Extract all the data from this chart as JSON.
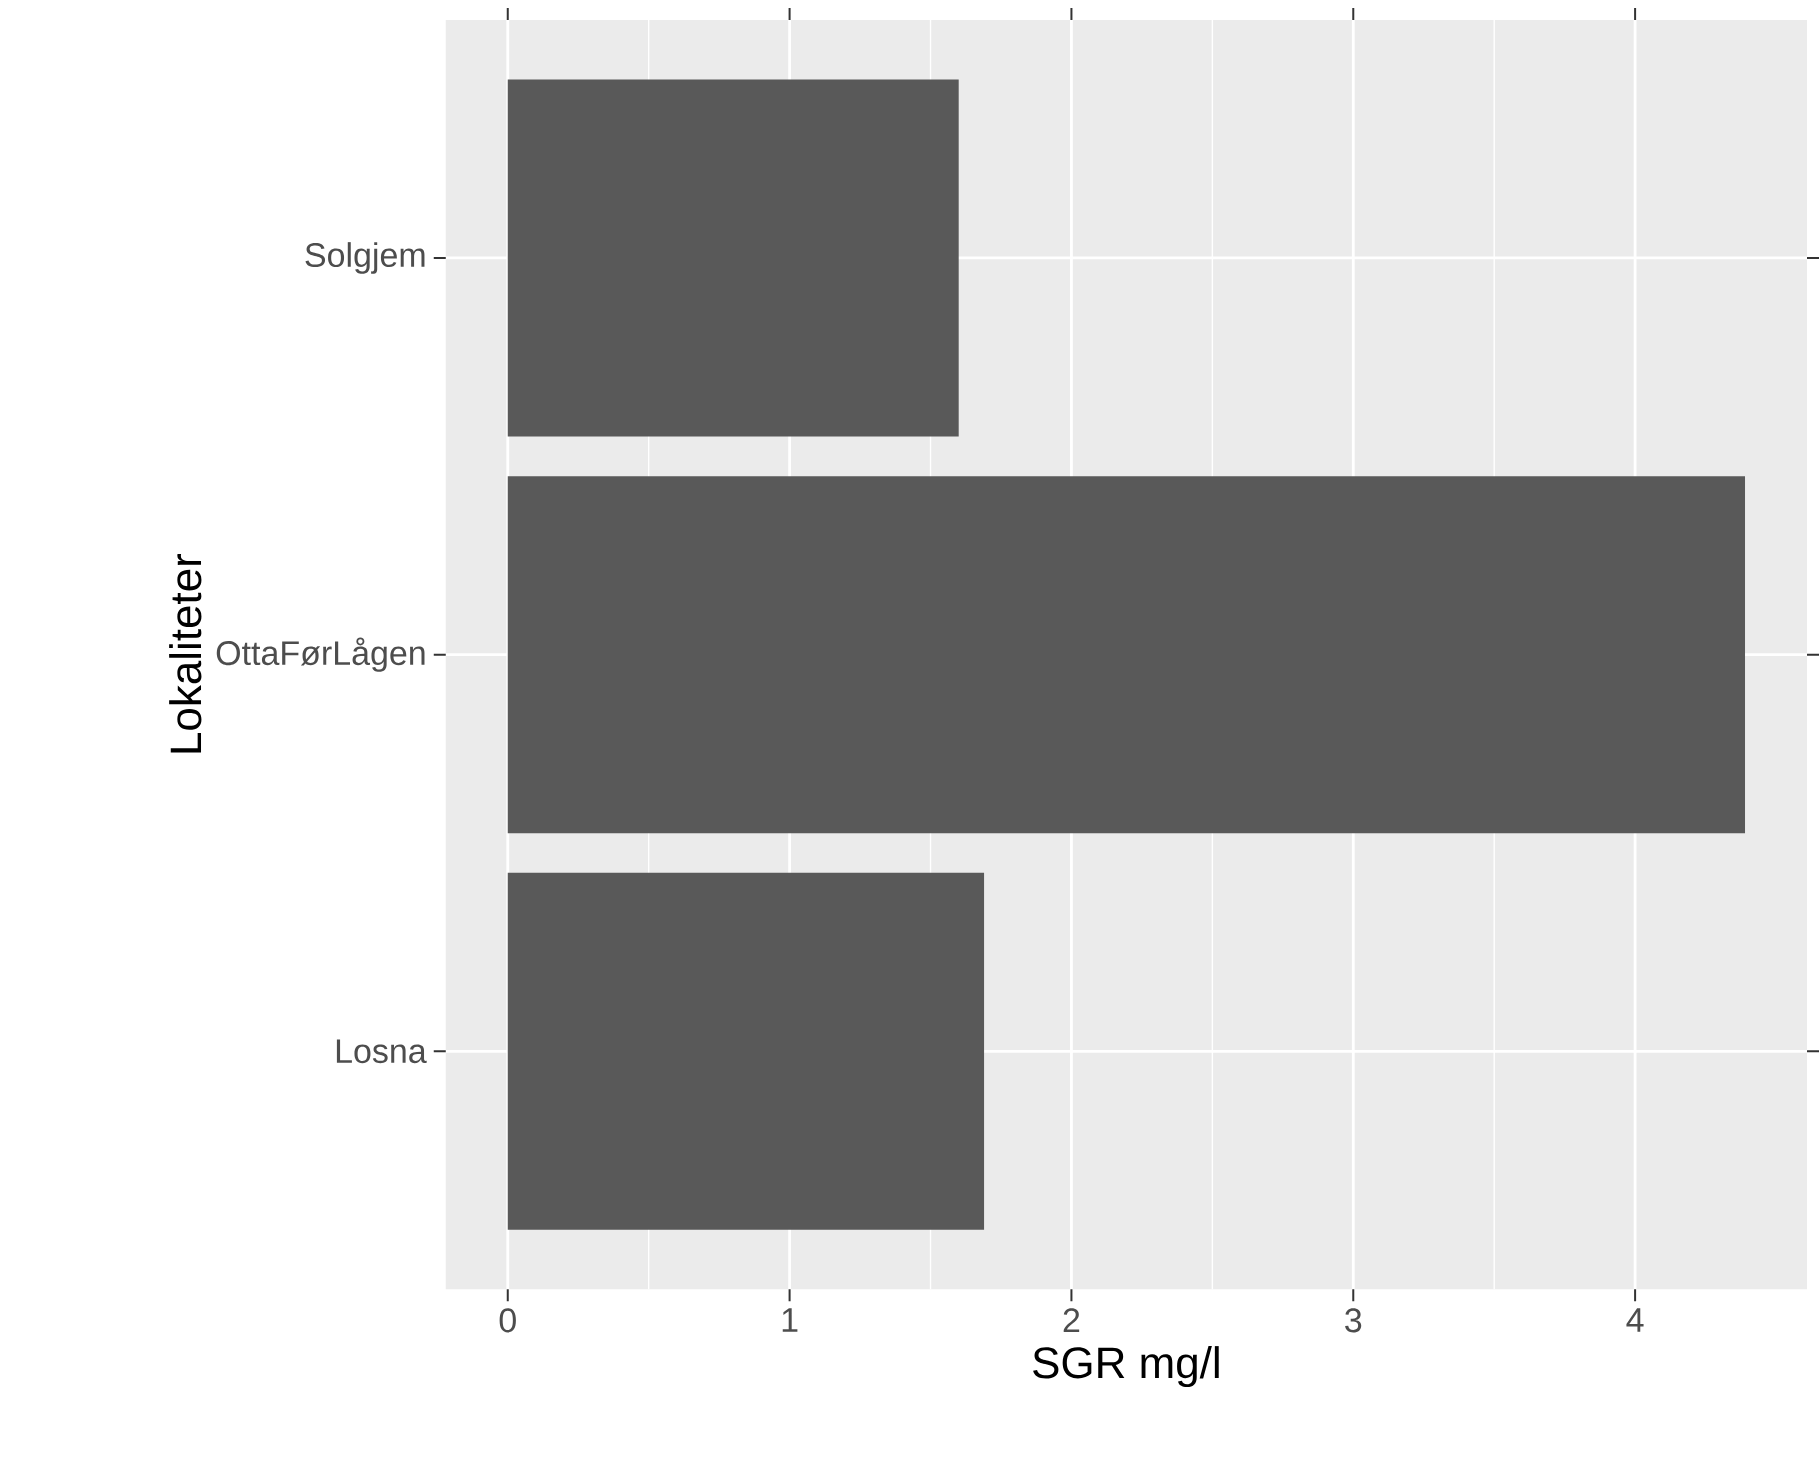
{
  "chart_data": {
    "type": "bar",
    "orientation": "horizontal",
    "categories": [
      "Solgjem",
      "OttaFørLågen",
      "Losna"
    ],
    "values": [
      1.6,
      4.39,
      1.69
    ],
    "color": "#595959",
    "xlim": [
      -0.22,
      4.61
    ],
    "xticks": [
      0,
      1,
      2,
      3,
      4
    ],
    "xlabel": "SGR mg/l",
    "ylabel": "Lokaliteter",
    "grid": true
  }
}
